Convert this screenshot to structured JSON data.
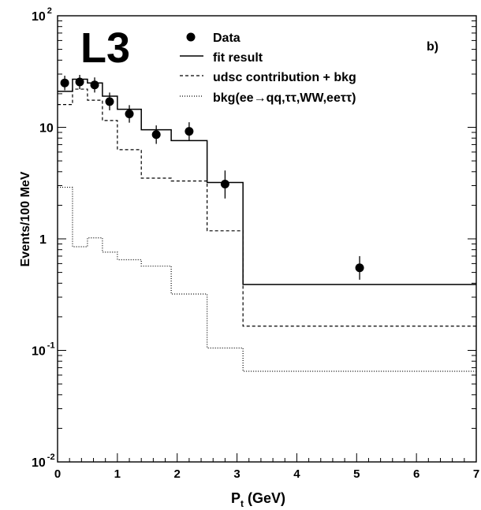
{
  "chart_data": {
    "type": "line",
    "experiment_label": "L3",
    "panel_label": "b)",
    "xlabel_main": "P",
    "xlabel_sub": "t",
    "xlabel_unit": " (GeV)",
    "ylabel": "Events/100 MeV",
    "xlim": [
      0,
      7
    ],
    "ylim": [
      0.01,
      100
    ],
    "yscale": "log",
    "x_ticks": [
      "0",
      "1",
      "2",
      "3",
      "4",
      "5",
      "6",
      "7"
    ],
    "y_ticks": [
      {
        "value": 0.01,
        "base": "10",
        "exp": "-2"
      },
      {
        "value": 0.1,
        "base": "10",
        "exp": "-1"
      },
      {
        "value": 1,
        "base": "1",
        "exp": ""
      },
      {
        "value": 10,
        "base": "10",
        "exp": ""
      },
      {
        "value": 100,
        "base": "10",
        "exp": "2"
      }
    ],
    "legend_position": "top",
    "legend": [
      {
        "key": "data",
        "label": "Data",
        "style": "marker"
      },
      {
        "key": "fit",
        "label": "fit result",
        "style": "solid"
      },
      {
        "key": "udsc",
        "label": "udsc contribution + bkg",
        "style": "dashed"
      },
      {
        "key": "bkg",
        "label": "bkg(ee→qq,ττ,WW,eeττ)",
        "style": "dotted"
      }
    ],
    "bin_edges": [
      0,
      0.25,
      0.5,
      0.75,
      1.0,
      1.4,
      1.9,
      2.5,
      3.1,
      7.0
    ],
    "series": [
      {
        "name": "fit result",
        "values": [
          21,
          27,
          25,
          19,
          14.5,
          9.5,
          7.6,
          3.2,
          0.39
        ],
        "style": "solid"
      },
      {
        "name": "udsc contribution + bkg",
        "values": [
          16,
          22,
          17.5,
          11.5,
          6.3,
          3.5,
          3.3,
          1.18,
          0.165
        ],
        "style": "dashed"
      },
      {
        "name": "bkg(ee→qq,ττ,WW,eeττ)",
        "values": [
          2.9,
          0.85,
          1.02,
          0.76,
          0.65,
          0.57,
          0.32,
          0.105,
          0.065
        ],
        "style": "dotted"
      }
    ],
    "data_points": [
      {
        "x": 0.12,
        "y": 25,
        "err_lo": 3.5,
        "err_hi": 4
      },
      {
        "x": 0.37,
        "y": 25.5,
        "err_lo": 3.5,
        "err_hi": 4
      },
      {
        "x": 0.62,
        "y": 24,
        "err_lo": 3.5,
        "err_hi": 4
      },
      {
        "x": 0.87,
        "y": 17,
        "err_lo": 2.8,
        "err_hi": 3.5
      },
      {
        "x": 1.2,
        "y": 13.2,
        "err_lo": 2.2,
        "err_hi": 2.6
      },
      {
        "x": 1.65,
        "y": 8.6,
        "err_lo": 1.5,
        "err_hi": 1.8
      },
      {
        "x": 2.2,
        "y": 9.2,
        "err_lo": 1.6,
        "err_hi": 1.9
      },
      {
        "x": 2.8,
        "y": 3.1,
        "err_lo": 0.8,
        "err_hi": 1.0
      },
      {
        "x": 5.05,
        "y": 0.55,
        "err_lo": 0.12,
        "err_hi": 0.15
      }
    ]
  }
}
